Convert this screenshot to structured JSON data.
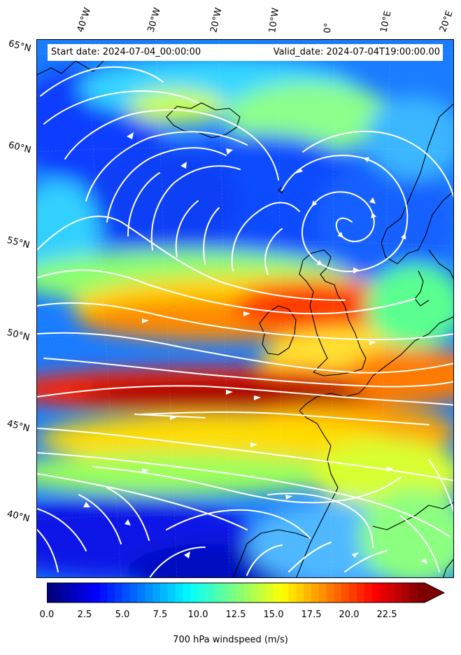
{
  "header": {
    "start_date": "Start date: 2024-07-04_00:00:00",
    "valid_date": "Valid_date: 2024-07-04T19:00:00.00"
  },
  "lon_labels": [
    "40°W",
    "30°W",
    "20°W",
    "10°W",
    "0°",
    "10°E",
    "20°E"
  ],
  "lat_labels": [
    "65°N",
    "60°N",
    "55°N",
    "50°N",
    "45°N",
    "40°N"
  ],
  "colorbar": {
    "label": "700 hPa windspeed (m/s)",
    "ticks": [
      "0.0",
      "2.5",
      "5.0",
      "7.5",
      "10.0",
      "12.5",
      "15.0",
      "17.5",
      "20.0",
      "22.5"
    ],
    "min": 0,
    "max": 25,
    "extend": "max",
    "colormap": "jet",
    "colors": [
      "#00007f",
      "#0000ff",
      "#007fff",
      "#00ffff",
      "#7fff7f",
      "#ffff00",
      "#ff7f00",
      "#ff0000",
      "#7f0000"
    ]
  },
  "map": {
    "field": "700 hPa windspeed",
    "overlay": "streamlines",
    "streamline_color": "#ffffff",
    "coastline_color": "#000000"
  }
}
